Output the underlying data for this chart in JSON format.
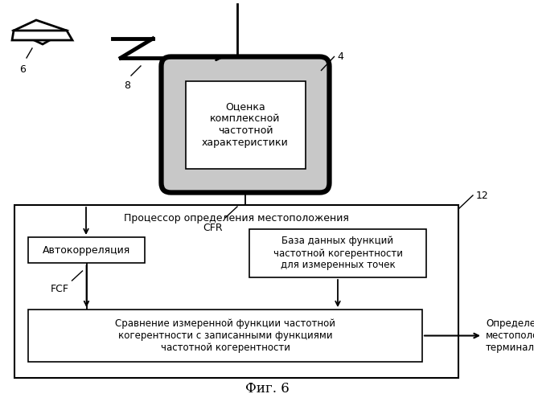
{
  "background_color": "#ffffff",
  "title": "Фиг. 6",
  "title_fontsize": 12,
  "laptop_label": "6",
  "signal_label": "8",
  "access_point_label": "4",
  "processor_label": "12",
  "cfr_label": "CFR",
  "fcf_label": "FCF",
  "output_label": "Определение\nместоположения\nтерминала",
  "ap_box_text": "Оценка\nкомплексной\nчастотной\nхарактеристики",
  "processor_title": "Процессор определения местоположения",
  "autocorr_text": "Автокорреляция",
  "database_text": "База данных функций\nчастотной когерентности\nдля измеренных точек",
  "compare_text": "Сравнение измеренной функции частотной\nкогерентности с записанными функциями\nчастотной когерентности",
  "line_color": "#000000",
  "box_fill": "#ffffff",
  "box_edge": "#000000"
}
